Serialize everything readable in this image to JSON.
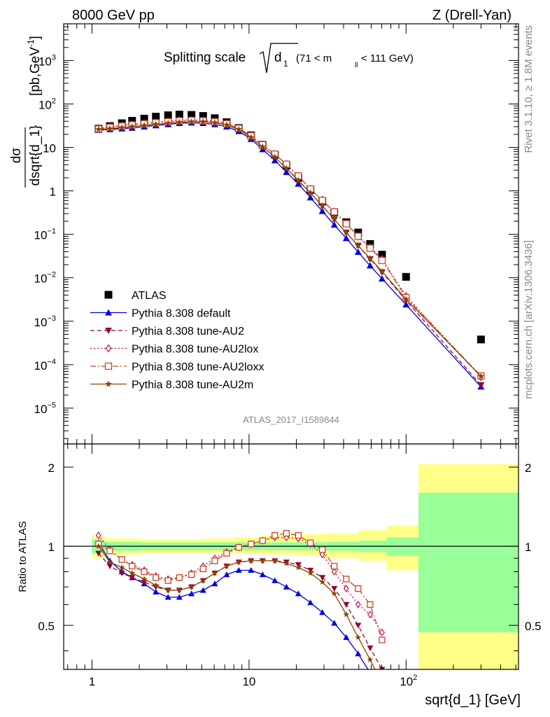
{
  "header": {
    "left": "8000 GeV pp",
    "right": "Z (Drell-Yan)"
  },
  "side_labels": {
    "rivet": "Rivet 3.1.10, ≥ 1.8M events",
    "mcplots": "mcplots.cern.ch [arXiv:1306.3436]"
  },
  "plot_title": {
    "main": "Splitting scale",
    "radicand": "d",
    "radicand_sub": "1",
    "range_prefix": "(71 < m",
    "range_sub": "ll",
    "range_suffix": " < 111 GeV)"
  },
  "analysis_id": "ATLAS_2017_I1589844",
  "ylabel_top": {
    "fraction_num": "dσ",
    "fraction_den": "dsqrt{d_1}",
    "units_pre": "[pb,GeV",
    "units_sup": "-1",
    "units_post": "]"
  },
  "ylabel_bottom": "Ratio to ATLAS",
  "xlabel": "sqrt{d_1} [GeV]",
  "ticks": {
    "x": [
      "1",
      "10"
    ],
    "x_e": {
      "base": "10",
      "exp": "2"
    },
    "y_top": [
      {
        "b": "10",
        "e": "3"
      },
      {
        "b": "10",
        "e": "2"
      },
      {
        "b": "10",
        "e": ""
      },
      {
        "b": "1",
        "e": ""
      },
      {
        "b": "10",
        "e": "−1"
      },
      {
        "b": "10",
        "e": "−2"
      },
      {
        "b": "10",
        "e": "−3"
      },
      {
        "b": "10",
        "e": "−4"
      },
      {
        "b": "10",
        "e": "−5"
      }
    ],
    "y_bottom": [
      "2",
      "1",
      "0.5"
    ]
  },
  "colors": {
    "data": "#000000",
    "default": "#0000dd",
    "au2": "#990033",
    "au2lox": "#bb1155",
    "au2loxx": "#cc4422",
    "au2m": "#884400",
    "band_inner": "#99ff99",
    "band_outer": "#ffff88"
  },
  "chart_data": [
    {
      "type": "scatter",
      "title": "Splitting scale sqrt(d_1) (71 < m_ll < 111 GeV)",
      "xlabel": "sqrt{d_1} [GeV]",
      "ylabel": "dσ/dsqrt{d_1} [pb,GeV^-1]",
      "xscale": "log",
      "yscale": "log",
      "xlim": [
        0.66,
        520
      ],
      "ylim": [
        1.5e-06,
        7000
      ],
      "legend_position": "lower-left",
      "series": [
        {
          "name": "ATLAS",
          "marker": "square",
          "color": "#000000",
          "x": [
            1.1,
            1.3,
            1.55,
            1.8,
            2.15,
            2.55,
            3.05,
            3.6,
            4.3,
            5.1,
            6.05,
            7.2,
            8.6,
            10.3,
            12.2,
            14.6,
            17.3,
            20.6,
            24.6,
            29.3,
            34.9,
            41.6,
            49.5,
            59,
            70.3,
            100,
            300
          ],
          "y": [
            27,
            31,
            36,
            41,
            46,
            51,
            55,
            57,
            56,
            53,
            47,
            38,
            28,
            19,
            11.5,
            6.8,
            3.8,
            2.0,
            1.05,
            0.57,
            0.32,
            0.19,
            0.11,
            0.06,
            0.034,
            0.0105,
            0.00038
          ]
        },
        {
          "name": "Pythia 8.308 default",
          "marker": "triangle-up",
          "color": "#0000dd",
          "style": "solid",
          "x": [
            1.1,
            1.3,
            1.55,
            1.8,
            2.15,
            2.55,
            3.05,
            3.6,
            4.3,
            5.1,
            6.05,
            7.2,
            8.6,
            10.3,
            12.2,
            14.6,
            17.3,
            20.6,
            24.6,
            29.3,
            34.9,
            41.6,
            49.5,
            59,
            70.3,
            100,
            300
          ],
          "y": [
            25,
            26,
            27,
            28,
            30,
            32,
            34,
            36,
            37,
            36,
            34,
            30,
            23.5,
            15.5,
            9,
            5,
            2.7,
            1.45,
            0.7,
            0.34,
            0.165,
            0.081,
            0.039,
            0.019,
            0.0095,
            0.0024,
            3.1e-05
          ]
        },
        {
          "name": "Pythia 8.308 tune-AU2",
          "marker": "triangle-down",
          "color": "#990033",
          "style": "dashed",
          "x": [
            1.1,
            1.3,
            1.55,
            1.8,
            2.15,
            2.55,
            3.05,
            3.6,
            4.3,
            5.1,
            6.05,
            7.2,
            8.6,
            10.3,
            12.2,
            14.6,
            17.3,
            20.6,
            24.6,
            29.3,
            34.9,
            41.6,
            49.5,
            59,
            70.3,
            100,
            300
          ],
          "y": [
            26,
            27,
            28.5,
            30,
            32,
            34,
            36,
            38,
            39,
            39,
            37,
            33,
            26,
            17,
            10.3,
            6.0,
            3.3,
            1.7,
            0.9,
            0.45,
            0.22,
            0.11,
            0.055,
            0.027,
            0.0135,
            0.003,
            3.4e-05
          ]
        },
        {
          "name": "Pythia 8.308 tune-AU2lox",
          "marker": "diamond-open",
          "color": "#bb1155",
          "style": "dotted",
          "x": [
            1.1,
            1.3,
            1.55,
            1.8,
            2.15,
            2.55,
            3.05,
            3.6,
            4.3,
            5.1,
            6.05,
            7.2,
            8.6,
            10.3,
            12.2,
            14.6,
            17.3,
            20.6,
            24.6,
            29.3,
            34.9,
            41.6,
            49.5,
            59,
            70.3,
            100,
            300
          ],
          "y": [
            27.5,
            30,
            32,
            34,
            36,
            38,
            40,
            42,
            43,
            42,
            40,
            36,
            28,
            18.5,
            11.5,
            7.0,
            4.1,
            2.2,
            1.1,
            0.62,
            0.33,
            0.18,
            0.09,
            0.05,
            0.027,
            0.0038,
            5.2e-05
          ]
        },
        {
          "name": "Pythia 8.308 tune-AU2loxx",
          "marker": "square-open",
          "color": "#cc4422",
          "style": "dashdot",
          "x": [
            1.1,
            1.3,
            1.55,
            1.8,
            2.15,
            2.55,
            3.05,
            3.6,
            4.3,
            5.1,
            6.05,
            7.2,
            8.6,
            10.3,
            12.2,
            14.6,
            17.3,
            20.6,
            24.6,
            29.3,
            34.9,
            41.6,
            49.5,
            59,
            70.3,
            100,
            300
          ],
          "y": [
            26.5,
            29,
            31,
            33,
            35,
            37,
            39,
            41,
            42,
            41,
            39,
            35,
            27.5,
            18.5,
            11.5,
            7.0,
            4.1,
            2.2,
            1.1,
            0.6,
            0.33,
            0.175,
            0.09,
            0.048,
            0.025,
            0.0035,
            5.5e-05
          ]
        },
        {
          "name": "Pythia 8.308 tune-AU2m",
          "marker": "star",
          "color": "#884400",
          "style": "solid",
          "x": [
            1.1,
            1.3,
            1.55,
            1.8,
            2.15,
            2.55,
            3.05,
            3.6,
            4.3,
            5.1,
            6.05,
            7.2,
            8.6,
            10.3,
            12.2,
            14.6,
            17.3,
            20.6,
            24.6,
            29.3,
            34.9,
            41.6,
            49.5,
            59,
            70.3,
            100,
            300
          ],
          "y": [
            26,
            27,
            28.5,
            30,
            32,
            34,
            36,
            38,
            39,
            39,
            37,
            33,
            26,
            17,
            10.3,
            6.0,
            3.3,
            1.75,
            0.9,
            0.45,
            0.22,
            0.11,
            0.055,
            0.028,
            0.014,
            0.0032,
            5.4e-05
          ]
        }
      ]
    },
    {
      "type": "line",
      "title": "",
      "xlabel": "sqrt{d_1} [GeV]",
      "ylabel": "Ratio to ATLAS",
      "xscale": "log",
      "yscale": "log",
      "xlim": [
        0.66,
        520
      ],
      "ylim": [
        0.34,
        2.45
      ],
      "reference_line": 1,
      "bands": {
        "edges": [
          1,
          1.2,
          2,
          3,
          5,
          8,
          12,
          20,
          30,
          50,
          75,
          120,
          520
        ],
        "inner": [
          [
            0.94,
            1.06
          ],
          [
            0.96,
            1.04
          ],
          [
            0.965,
            1.035
          ],
          [
            0.965,
            1.035
          ],
          [
            0.965,
            1.035
          ],
          [
            0.965,
            1.035
          ],
          [
            0.965,
            1.035
          ],
          [
            0.965,
            1.035
          ],
          [
            0.96,
            1.04
          ],
          [
            0.95,
            1.05
          ],
          [
            0.92,
            1.08
          ],
          [
            0.47,
            1.6
          ]
        ],
        "outer": [
          [
            0.9,
            1.1
          ],
          [
            0.93,
            1.07
          ],
          [
            0.94,
            1.06
          ],
          [
            0.94,
            1.06
          ],
          [
            0.94,
            1.07
          ],
          [
            0.94,
            1.08
          ],
          [
            0.93,
            1.1
          ],
          [
            0.92,
            1.11
          ],
          [
            0.9,
            1.12
          ],
          [
            0.88,
            1.15
          ],
          [
            0.81,
            1.2
          ],
          [
            0.34,
            2.05
          ]
        ]
      },
      "series": [
        {
          "name": "Pythia 8.308 default",
          "color": "#0000dd",
          "marker": "triangle-up",
          "style": "solid",
          "x": [
            1.1,
            1.3,
            1.55,
            1.8,
            2.15,
            2.55,
            3.05,
            3.6,
            4.3,
            5.1,
            6.05,
            7.2,
            8.6,
            10.3,
            12.2,
            14.6,
            17.3,
            20.6,
            24.6,
            29.3,
            34.9,
            41.6,
            49.5,
            59
          ],
          "y": [
            1.03,
            0.88,
            0.8,
            0.76,
            0.72,
            0.67,
            0.64,
            0.64,
            0.66,
            0.68,
            0.72,
            0.78,
            0.81,
            0.81,
            0.78,
            0.74,
            0.7,
            0.66,
            0.61,
            0.56,
            0.51,
            0.45,
            0.39,
            0.33
          ]
        },
        {
          "name": "Pythia 8.308 tune-AU2",
          "color": "#990033",
          "marker": "triangle-down",
          "style": "dashed",
          "x": [
            1.1,
            1.3,
            1.55,
            1.8,
            2.15,
            2.55,
            3.05,
            3.6,
            4.3,
            5.1,
            6.05,
            7.2,
            8.6,
            10.3,
            12.2,
            14.6,
            17.3,
            20.6,
            24.6,
            29.3,
            34.9,
            41.6,
            49.5,
            59,
            70.3
          ],
          "y": [
            0.94,
            0.84,
            0.79,
            0.76,
            0.73,
            0.7,
            0.68,
            0.68,
            0.7,
            0.74,
            0.79,
            0.84,
            0.87,
            0.88,
            0.88,
            0.88,
            0.87,
            0.85,
            0.81,
            0.76,
            0.69,
            0.6,
            0.5,
            0.41,
            0.34
          ]
        },
        {
          "name": "Pythia 8.308 tune-AU2lox",
          "color": "#bb1155",
          "marker": "diamond-open",
          "style": "dotted",
          "x": [
            1.1,
            1.3,
            1.55,
            1.8,
            2.15,
            2.55,
            3.05,
            3.6,
            4.3,
            5.1,
            6.05,
            7.2,
            8.6,
            10.3,
            12.2,
            14.6,
            17.3,
            20.6,
            24.6,
            29.3,
            34.9,
            41.6,
            49.5,
            59,
            70.3
          ],
          "y": [
            1.1,
            0.97,
            0.89,
            0.85,
            0.81,
            0.77,
            0.75,
            0.76,
            0.79,
            0.84,
            0.9,
            0.95,
            0.99,
            1.02,
            1.05,
            1.08,
            1.08,
            1.07,
            1.02,
            0.93,
            0.8,
            0.69,
            0.6,
            0.55,
            0.47
          ]
        },
        {
          "name": "Pythia 8.308 tune-AU2loxx",
          "color": "#cc4422",
          "marker": "square-open",
          "style": "dashdot",
          "x": [
            1.1,
            1.3,
            1.55,
            1.8,
            2.15,
            2.55,
            3.05,
            3.6,
            4.3,
            5.1,
            6.05,
            7.2,
            8.6,
            10.3,
            12.2,
            14.6,
            17.3,
            20.6,
            24.6,
            29.3,
            34.9,
            41.6,
            49.5,
            59,
            70.3
          ],
          "y": [
            1.02,
            0.96,
            0.89,
            0.84,
            0.8,
            0.76,
            0.74,
            0.76,
            0.78,
            0.82,
            0.88,
            0.94,
            0.99,
            1.02,
            1.05,
            1.1,
            1.12,
            1.1,
            1.03,
            0.97,
            0.84,
            0.75,
            0.69,
            0.6,
            0.44
          ]
        },
        {
          "name": "Pythia 8.308 tune-AU2m",
          "color": "#884400",
          "marker": "star",
          "style": "solid",
          "x": [
            1.1,
            1.3,
            1.55,
            1.8,
            2.15,
            2.55,
            3.05,
            3.6,
            4.3,
            5.1,
            6.05,
            7.2,
            8.6,
            10.3,
            12.2,
            14.6,
            17.3,
            20.6,
            24.6,
            29.3,
            34.9,
            41.6,
            49.5,
            59,
            70.3
          ],
          "y": [
            1.0,
            0.87,
            0.83,
            0.79,
            0.75,
            0.71,
            0.68,
            0.68,
            0.7,
            0.74,
            0.79,
            0.84,
            0.87,
            0.88,
            0.88,
            0.88,
            0.86,
            0.83,
            0.79,
            0.73,
            0.66,
            0.55,
            0.45,
            0.37,
            0.3
          ]
        }
      ]
    }
  ]
}
